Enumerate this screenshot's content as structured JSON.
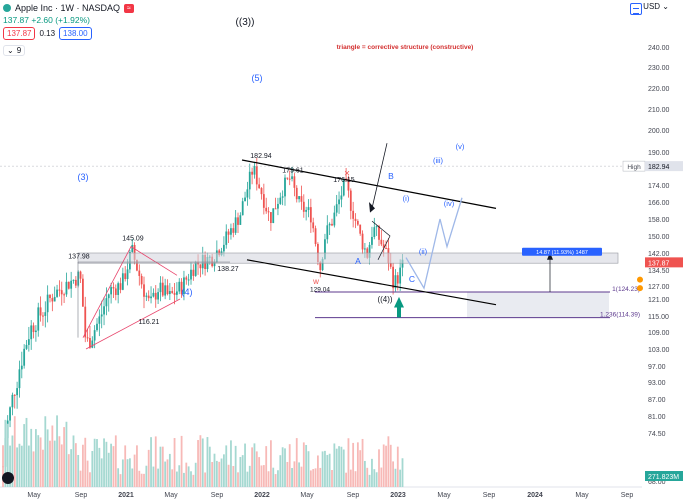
{
  "header": {
    "symbol_line": "Apple Inc · 1W · NASDAQ",
    "change": "137.87 +2.60 (+1.92%)",
    "sell_price": "137.87",
    "spread": "0.13",
    "buy_price": "138.00",
    "indicator_count": "9",
    "currency": "USD"
  },
  "colors": {
    "up": "#26a69a",
    "down": "#ef5350",
    "trend": "#000000",
    "wave_label": "#2962ff",
    "target": "#5d3a8e",
    "projection": "#9fb8e8",
    "triangle": "#e8446b"
  },
  "chart_data": {
    "type": "candlestick",
    "title": "",
    "annotation": "triangle = corrective structure (constructive)",
    "y_ticks": [
      68.0,
      74.5,
      81.0,
      87.0,
      93.0,
      97.0,
      103.0,
      109.0,
      115.0,
      121.0,
      127.0,
      134.5,
      142.0,
      150.0,
      158.0,
      166.0,
      174.0,
      182.0,
      190.0,
      200.0,
      210.0,
      220.0,
      230.0,
      240.0
    ],
    "ylim": [
      66,
      245
    ],
    "x_ticks": [
      "May",
      "Sep",
      "2021",
      "May",
      "Sep",
      "2022",
      "May",
      "Sep",
      "2023",
      "May",
      "Sep",
      "2024",
      "May",
      "Sep"
    ],
    "price_labels": {
      "high_label": "High",
      "high": "182.94",
      "current": "137.87"
    },
    "volume_label": "271.823M",
    "key_levels": [
      {
        "label": "182.94",
        "value": 182.94
      },
      {
        "label": "179.61",
        "value": 179.61
      },
      {
        "label": "176.15",
        "value": 176.15
      },
      {
        "label": "145.09",
        "value": 145.09
      },
      {
        "label": "137.98",
        "value": 137.98
      },
      {
        "label": "138.27",
        "value": 138.27
      },
      {
        "label": "116.21",
        "value": 116.21
      },
      {
        "label": "129.04",
        "value": 129.04
      }
    ],
    "fib_targets": [
      {
        "label": "1(124.23)",
        "value": 124.23
      },
      {
        "label": "1.236(114.39)",
        "value": 114.39
      }
    ],
    "measure_label": "14.87 (11.93%) 1487",
    "wave_labels": {
      "w3_primary": "((3))",
      "w4_primary": "((4))",
      "w3": "(3)",
      "w4": "(4)",
      "w5": "(5)",
      "a": "A",
      "b": "B",
      "c": "C",
      "i": "(i)",
      "ii": "(ii)",
      "iii": "(iii)",
      "iv": "(iv)",
      "v": "(v)"
    }
  }
}
